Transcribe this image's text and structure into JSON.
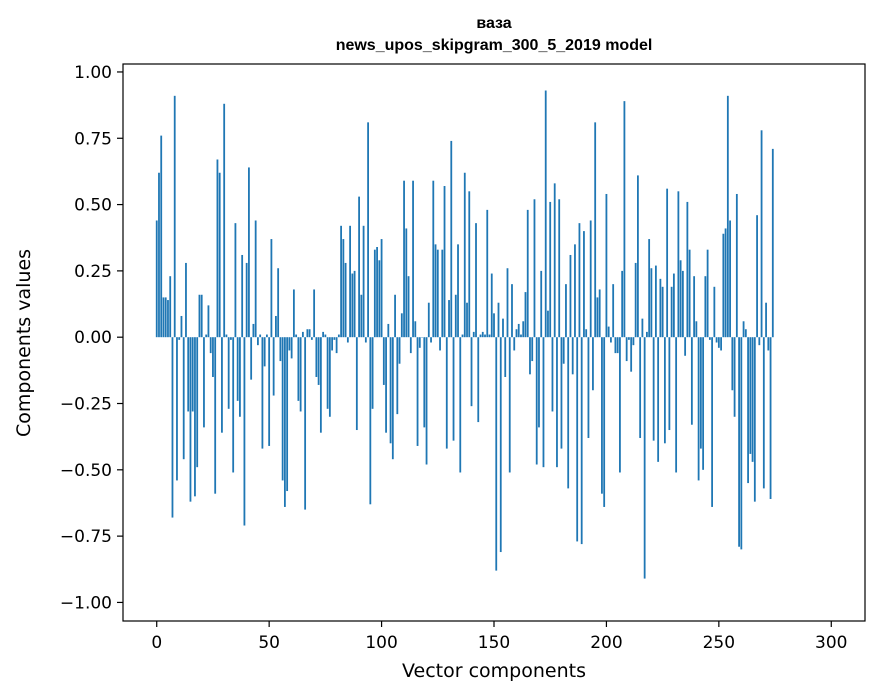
{
  "chart_data": {
    "type": "bar",
    "title": "ваза",
    "subtitle": "news_upos_skipgram_300_5_2019 model",
    "xlabel": "Vector components",
    "ylabel": "Components values",
    "xlim": [
      -15,
      315
    ],
    "ylim": [
      -1.07,
      1.03
    ],
    "xticks": [
      0,
      50,
      100,
      150,
      200,
      250,
      300
    ],
    "xtick_labels": [
      "0",
      "50",
      "100",
      "150",
      "200",
      "250",
      "300"
    ],
    "yticks": [
      -1.0,
      -0.75,
      -0.5,
      -0.25,
      0.0,
      0.25,
      0.5,
      0.75,
      1.0
    ],
    "ytick_labels": [
      "−1.00",
      "−0.75",
      "−0.50",
      "−0.25",
      "0.00",
      "0.25",
      "0.50",
      "0.75",
      "1.00"
    ],
    "grid": false,
    "bar_color": "#1f77b4",
    "values": [
      0.44,
      0.62,
      0.76,
      0.15,
      0.15,
      0.14,
      0.23,
      -0.68,
      0.91,
      -0.54,
      -0.01,
      0.08,
      -0.46,
      0.28,
      -0.28,
      -0.62,
      -0.28,
      -0.6,
      -0.49,
      0.16,
      0.16,
      -0.34,
      0.01,
      0.12,
      -0.06,
      -0.15,
      -0.59,
      0.67,
      0.62,
      -0.36,
      0.88,
      0.01,
      -0.27,
      -0.01,
      -0.51,
      0.43,
      -0.24,
      -0.3,
      0.31,
      -0.71,
      0.28,
      0.64,
      -0.16,
      0.05,
      0.44,
      -0.03,
      0.01,
      -0.42,
      -0.11,
      0.01,
      -0.41,
      0.37,
      -0.22,
      0.08,
      0.26,
      -0.09,
      -0.54,
      -0.64,
      -0.58,
      -0.05,
      -0.08,
      0.18,
      0.01,
      -0.24,
      -0.28,
      0.02,
      -0.65,
      0.03,
      0.03,
      -0.01,
      0.18,
      -0.15,
      -0.18,
      -0.36,
      0.02,
      0.01,
      -0.27,
      -0.3,
      -0.05,
      -0.01,
      -0.06,
      0.01,
      0.42,
      0.37,
      0.28,
      -0.02,
      0.42,
      0.24,
      0.25,
      -0.35,
      0.53,
      0.16,
      0.42,
      -0.02,
      0.81,
      -0.63,
      -0.27,
      0.33,
      0.34,
      0.29,
      0.37,
      -0.18,
      -0.36,
      0.05,
      -0.4,
      -0.46,
      0.16,
      -0.29,
      -0.1,
      0.09,
      0.59,
      0.41,
      0.23,
      -0.06,
      0.59,
      0.06,
      -0.41,
      -0.04,
      0.0,
      -0.34,
      -0.48,
      0.13,
      -0.02,
      0.59,
      0.35,
      0.33,
      -0.05,
      0.33,
      0.57,
      -0.42,
      0.14,
      0.74,
      -0.39,
      0.16,
      0.35,
      -0.51,
      0.01,
      0.62,
      0.13,
      0.55,
      -0.26,
      0.02,
      0.43,
      -0.32,
      0.01,
      0.02,
      0.01,
      0.48,
      0.01,
      0.24,
      0.09,
      -0.88,
      0.13,
      -0.81,
      0.07,
      -0.15,
      0.26,
      -0.51,
      0.2,
      -0.05,
      0.03,
      0.05,
      0.01,
      0.06,
      0.17,
      0.48,
      -0.14,
      -0.09,
      0.52,
      -0.48,
      -0.34,
      0.25,
      -0.49,
      0.93,
      0.1,
      0.51,
      -0.28,
      0.58,
      -0.49,
      0.52,
      -0.42,
      -0.1,
      0.2,
      -0.57,
      0.31,
      -0.14,
      0.35,
      -0.77,
      0.43,
      -0.78,
      0.4,
      0.03,
      -0.38,
      0.44,
      -0.2,
      0.81,
      0.15,
      0.18,
      -0.59,
      -0.64,
      0.54,
      0.04,
      -0.02,
      0.2,
      -0.06,
      -0.06,
      -0.51,
      0.25,
      0.89,
      -0.09,
      -0.01,
      -0.13,
      -0.03,
      0.28,
      0.61,
      -0.38,
      0.07,
      -0.91,
      0.02,
      0.37,
      0.26,
      -0.39,
      0.27,
      -0.47,
      0.22,
      0.19,
      -0.4,
      0.56,
      -0.35,
      0.19,
      0.24,
      -0.51,
      0.55,
      0.29,
      0.25,
      -0.07,
      0.51,
      0.33,
      -0.33,
      0.23,
      0.06,
      -0.54,
      -0.42,
      -0.5,
      0.23,
      0.33,
      -0.01,
      -0.64,
      0.19,
      -0.02,
      -0.04,
      -0.05,
      0.39,
      0.41,
      0.91,
      0.44,
      -0.2,
      -0.3,
      0.54,
      -0.79,
      -0.8,
      0.06,
      0.03,
      -0.55,
      -0.44,
      -0.47,
      -0.62,
      0.46,
      -0.03,
      0.78,
      -0.57,
      0.13,
      -0.05,
      -0.61,
      0.71
    ]
  }
}
